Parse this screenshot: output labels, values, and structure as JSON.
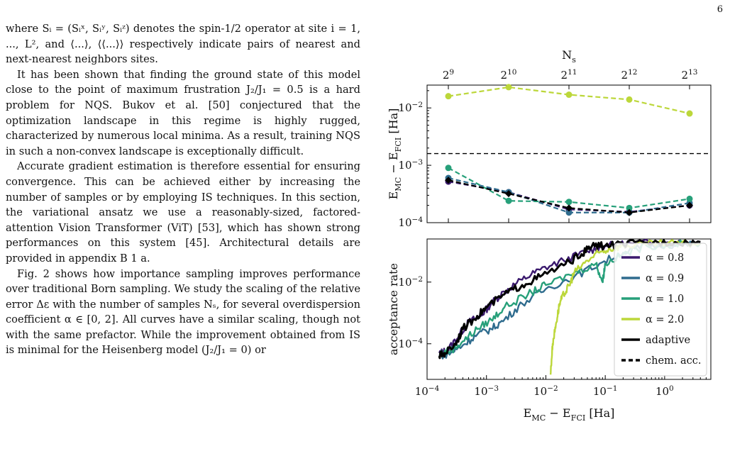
{
  "page_number": "6",
  "text": {
    "p1": "where Sᵢ = (Sᵢˣ, Sᵢʸ, Sᵢᶻ) denotes the spin-1/2 operator at site i = 1, ..., L², and ⟨...⟩, ⟨⟨...⟩⟩ respectively indicate pairs of nearest and next-nearest neighbors sites.",
    "p2": "It has been shown that finding the ground state of this model close to the point of maximum frustration J₂/J₁ = 0.5 is a hard problem for NQS. Bukov et al. [50] conjectured that the optimization landscape in this regime is highly rugged, characterized by numerous local minima. As a result, training NQS in such a non-convex landscape is exceptionally difficult.",
    "p3": "Accurate gradient estimation is therefore essential for ensuring convergence. This can be achieved either by increasing the number of samples or by employing IS techniques. In this section, the variational ansatz we use a reasonably-sized, factored-attention Vision Transformer (ViT) [53], which has shown strong performances on this system [45]. Architectural details are provided in appendix B 1 a.",
    "p4": "Fig. 2 shows how importance sampling improves performance over traditional Born sampling. We study the scaling of the relative error Δε with the number of samples Nₛ, for several overdispersion coefficient α ∈ [0, 2]. All curves have a similar scaling, though not with the same prefactor. While the improvement obtained from IS is minimal for the Heisenberg model (J₂/J₁ = 0) or"
  },
  "chart_data": [
    {
      "type": "line",
      "x": [
        512,
        1024,
        2048,
        4096,
        8192
      ],
      "top_xlabel": "N_s",
      "top_ticks": [
        "2^9",
        "2^10",
        "2^11",
        "2^12",
        "2^13"
      ],
      "ylabel": "E_MC − E_FCI [Ha]",
      "yscale": "log",
      "ylim": [
        0.0001,
        0.025
      ],
      "yticks": [
        "10^−4",
        "10^−3",
        "10^−2"
      ],
      "reference_line": {
        "y": 0.0016,
        "style": "dashed"
      },
      "series": [
        {
          "name": "α = 0.8",
          "color": "#3b1a6e",
          "y": [
            0.00052,
            0.00034,
            0.00017,
            0.000155,
            0.0002
          ]
        },
        {
          "name": "α = 0.9",
          "color": "#2f6c8e",
          "y": [
            0.0006,
            0.00034,
            0.00015,
            0.00015,
            0.00022
          ]
        },
        {
          "name": "α = 1.0",
          "color": "#27a07a",
          "y": [
            0.0009,
            0.00024,
            0.00023,
            0.00018,
            0.00026
          ]
        },
        {
          "name": "α = 2.0",
          "color": "#bcd73a",
          "y": [
            0.016,
            0.023,
            0.017,
            0.014,
            0.008
          ]
        },
        {
          "name": "adaptive",
          "color": "#000000",
          "y": [
            0.00055,
            0.00032,
            0.00018,
            0.00015,
            0.0002
          ]
        }
      ]
    },
    {
      "type": "line",
      "xlabel": "E_MC − E_FCI [Ha]",
      "ylabel": "acceptance rate",
      "xscale": "log",
      "yscale": "log",
      "xlim": [
        0.0001,
        6
      ],
      "ylim": [
        7e-06,
        0.25
      ],
      "xticks": [
        "10^−4",
        "10^−3",
        "10^−2",
        "10^−1",
        "10^0"
      ],
      "yticks": [
        "10^−4",
        "10^−2"
      ],
      "legend_position": "right",
      "legend": [
        {
          "label": "α = 0.8",
          "color": "#3b1a6e",
          "style": "solid"
        },
        {
          "label": "α = 0.9",
          "color": "#2f6c8e",
          "style": "solid"
        },
        {
          "label": "α = 1.0",
          "color": "#27a07a",
          "style": "solid"
        },
        {
          "label": "α = 2.0",
          "color": "#bcd73a",
          "style": "solid"
        },
        {
          "label": "adaptive",
          "color": "#000000",
          "style": "solid"
        },
        {
          "label": "chem. acc.",
          "color": "#000000",
          "style": "dashed"
        }
      ],
      "series": [
        {
          "name": "α = 0.8",
          "color": "#3b1a6e",
          "x": [
            0.00016,
            0.00022,
            0.00035,
            0.0005,
            0.0008,
            0.0012,
            0.002,
            0.004,
            0.008,
            0.02,
            0.05,
            0.1,
            0.3,
            1,
            4
          ],
          "y": [
            5e-05,
            6e-05,
            0.0002,
            0.0005,
            0.0008,
            0.002,
            0.005,
            0.012,
            0.025,
            0.05,
            0.1,
            0.15,
            0.18,
            0.19,
            0.19
          ]
        },
        {
          "name": "α = 0.9",
          "color": "#2f6c8e",
          "x": [
            0.00016,
            0.00025,
            0.0004,
            0.0007,
            0.0012,
            0.002,
            0.004,
            0.01,
            0.03,
            0.08,
            0.2,
            0.5,
            1.5,
            4
          ],
          "y": [
            4e-05,
            5e-05,
            9e-05,
            0.0002,
            0.0003,
            0.0006,
            0.002,
            0.006,
            0.015,
            0.04,
            0.09,
            0.15,
            0.17,
            0.17
          ]
        },
        {
          "name": "α = 1.0",
          "color": "#27a07a",
          "x": [
            0.00016,
            0.00025,
            0.0004,
            0.0007,
            0.0012,
            0.002,
            0.005,
            0.01,
            0.03,
            0.07,
            0.09,
            0.1,
            0.2,
            0.5,
            1.5,
            4
          ],
          "y": [
            5e-05,
            6e-05,
            0.00012,
            0.0003,
            0.0006,
            0.0015,
            0.004,
            0.008,
            0.02,
            0.04,
            0.01,
            0.04,
            0.08,
            0.15,
            0.17,
            0.18
          ]
        },
        {
          "name": "α = 2.0",
          "color": "#bcd73a",
          "x": [
            0.012,
            0.013,
            0.015,
            0.017,
            0.02,
            0.025,
            0.03,
            0.05,
            0.08,
            0.12,
            0.2,
            0.5,
            1.5,
            4
          ],
          "y": [
            1e-05,
            0.0001,
            0.0005,
            0.002,
            0.004,
            0.008,
            0.02,
            0.05,
            0.09,
            0.12,
            0.15,
            0.17,
            0.18,
            0.18
          ]
        },
        {
          "name": "adaptive",
          "color": "#000000",
          "x": [
            0.00016,
            0.0002,
            0.0003,
            0.0004,
            0.0007,
            0.001,
            0.002,
            0.004,
            0.008,
            0.02,
            0.04,
            0.06,
            0.1,
            0.2,
            0.5,
            1.5,
            4
          ],
          "y": [
            4e-05,
            5e-05,
            0.0001,
            0.0003,
            0.0008,
            0.0015,
            0.004,
            0.008,
            0.015,
            0.035,
            0.08,
            0.15,
            0.15,
            0.17,
            0.19,
            0.2,
            0.2
          ]
        }
      ]
    }
  ]
}
